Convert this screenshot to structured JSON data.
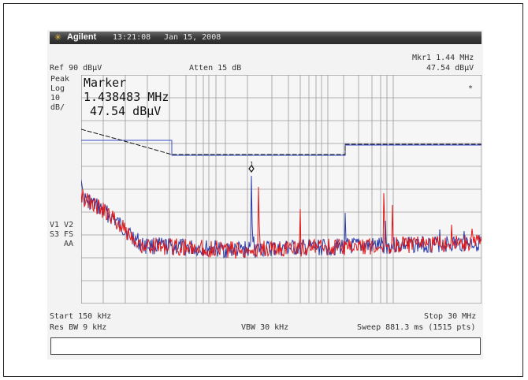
{
  "title_bar": {
    "icon": "asterisk-logo-icon",
    "brand": "Agilent",
    "time": "13:21:08",
    "date": "Jan 15, 2008"
  },
  "header": {
    "ref_level": "Ref 90 dBµV",
    "attenuation": "Atten 15 dB",
    "marker_freq": "Mkr1  1.44 MHz",
    "marker_level": "47.54 dBµV"
  },
  "left_labels": {
    "line1": "Peak",
    "line2": "Log",
    "line3": "10",
    "line4": "dB/",
    "trace_line1": "V1  V2",
    "trace_line2": "S3  FS",
    "trace_line3": "AA"
  },
  "marker_box": {
    "label": "Marker",
    "freq": "1.438483 MHz",
    "level": "47.54 dBµV",
    "star": "*",
    "marker_number": "1"
  },
  "footer": {
    "start": "Start 150 kHz",
    "stop": "Stop 30 MHz",
    "res_bw": "Res BW 9 kHz",
    "vbw": "VBW 30 kHz",
    "sweep": "Sweep 881.3 ms (1515 pts)"
  },
  "colors": {
    "trace_blue": "#2a3aa8",
    "trace_red": "#e01818",
    "limit_blue": "#3a4ec8",
    "limit_black": "#111111",
    "grid": "#9a9a9a"
  }
}
